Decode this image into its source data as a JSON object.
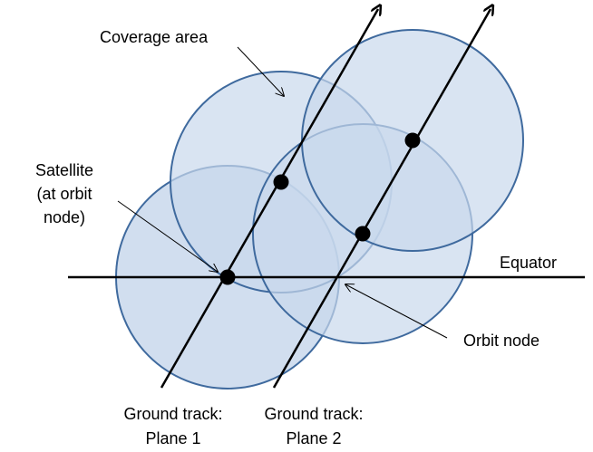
{
  "labels": {
    "coverage_area": "Coverage area",
    "satellite_line1": "Satellite",
    "satellite_line2": "(at orbit",
    "satellite_line3": "node)",
    "equator": "Equator",
    "orbit_node": "Orbit node",
    "ground_track_1_line1": "Ground track:",
    "ground_track_1_line2": "Plane 1",
    "ground_track_2_line1": "Ground track:",
    "ground_track_2_line2": "Plane 2"
  },
  "colors": {
    "coverage_fill": "#c9d8ec",
    "coverage_stroke": "#3f6a9e",
    "line": "#000000"
  }
}
